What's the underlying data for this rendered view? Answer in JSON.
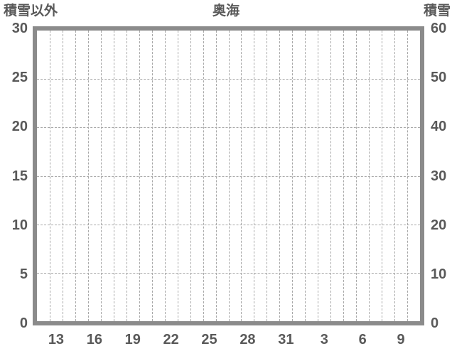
{
  "chart_data": {
    "type": "line",
    "title": "奥海",
    "series": [],
    "y_axis_left": {
      "label": "積雪以外",
      "min": 0,
      "max": 30,
      "tick_step": 5,
      "ticks": [
        "30",
        "25",
        "20",
        "15",
        "10",
        "5",
        "0"
      ]
    },
    "y_axis_right": {
      "label": "積雪",
      "min": 0,
      "max": 60,
      "tick_step": 10,
      "ticks": [
        "60",
        "50",
        "40",
        "30",
        "20",
        "10",
        "0"
      ]
    },
    "x_axis": {
      "tick_labels": [
        "13",
        "16",
        "19",
        "22",
        "25",
        "28",
        "31",
        "3",
        "6",
        "9"
      ],
      "day_slots": 30,
      "first_labeled_slot": 1,
      "label_interval_days": 3
    },
    "grid": {
      "style": "dashed",
      "vertical_lines": 29,
      "horizontal_lines": 5
    },
    "colors": {
      "frame": "#8b8b8b",
      "grid": "#a8a8a8",
      "text": "#595959",
      "background": "#ffffff"
    }
  }
}
